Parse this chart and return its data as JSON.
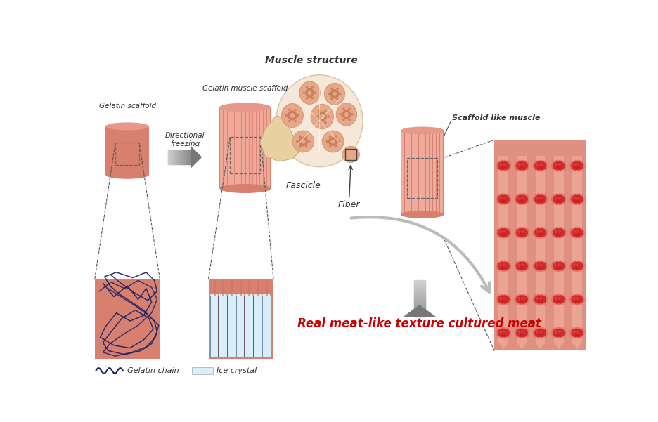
{
  "bg_color": "#ffffff",
  "salmon_body": "#D98070",
  "salmon_light": "#EFA898",
  "salmon_mid": "#C87060",
  "ice_color": "#D8EEF8",
  "dark_blue": "#1A2060",
  "red_dot": "#CC2020",
  "title": "Muscle structure",
  "label_gelatin_scaffold": "Gelatin scaffold",
  "label_directional": "Directional\nfreezing",
  "label_gelatin_muscle": "Gelatin muscle scaffold",
  "label_fascicle": "Fascicle",
  "label_fiber": "Fiber",
  "label_scaffold_like": "Scaffold like muscle",
  "label_gelatin_chain": "Gelatin chain",
  "label_ice_crystal": "Ice crystal",
  "label_result": "Real meat-like texture cultured meat",
  "figsize": [
    9.37,
    6.01
  ],
  "dpi": 100
}
